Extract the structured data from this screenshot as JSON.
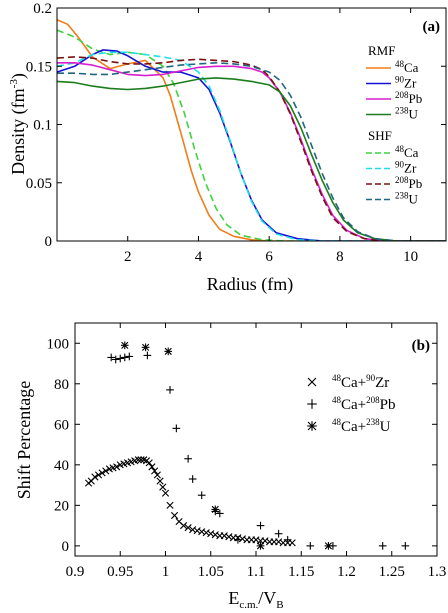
{
  "chart_data": [
    {
      "type": "line",
      "panel_label": "(a)",
      "xlabel": "Radius (fm)",
      "ylabel_main": "Density (fm",
      "ylabel_sup": "-3",
      "ylabel_close": ")",
      "xlim": [
        0,
        11
      ],
      "ylim": [
        0,
        0.2
      ],
      "xticks": [
        2,
        4,
        6,
        8,
        10
      ],
      "yticks": [
        0,
        0.05,
        0.1,
        0.15,
        0.2
      ],
      "ytick_labels": [
        "0",
        "0.05",
        "0.1",
        "0.15",
        "0.2"
      ],
      "legend_groups": [
        {
          "title": "RMF",
          "style": "solid",
          "entries": [
            {
              "mass": "48",
              "element": "Ca",
              "color": "#f07d1a"
            },
            {
              "mass": "90",
              "element": "Zr",
              "color": "#1414d6"
            },
            {
              "mass": "208",
              "element": "Pb",
              "color": "#d81fd0"
            },
            {
              "mass": "238",
              "element": "U",
              "color": "#1b7d1b"
            }
          ]
        },
        {
          "title": "SHF",
          "style": "dashed",
          "entries": [
            {
              "mass": "48",
              "element": "Ca",
              "color": "#3fd43f"
            },
            {
              "mass": "90",
              "element": "Zr",
              "color": "#20e0e6"
            },
            {
              "mass": "208",
              "element": "Pb",
              "color": "#7a1010"
            },
            {
              "mass": "238",
              "element": "U",
              "color": "#1f6680"
            }
          ]
        }
      ],
      "series": [
        {
          "name": "48Ca RMF",
          "color": "#f07d1a",
          "dash": false,
          "x": [
            0,
            0.3,
            0.6,
            1.0,
            1.5,
            2.0,
            2.5,
            3.0,
            3.2,
            3.5,
            3.8,
            4.0,
            4.3,
            4.6,
            5.0,
            5.5,
            6.0,
            11
          ],
          "y": [
            0.19,
            0.186,
            0.175,
            0.158,
            0.148,
            0.152,
            0.155,
            0.14,
            0.125,
            0.093,
            0.06,
            0.042,
            0.022,
            0.01,
            0.004,
            0.001,
            0,
            0
          ]
        },
        {
          "name": "48Ca SHF",
          "color": "#3fd43f",
          "dash": true,
          "x": [
            0,
            0.5,
            1.0,
            1.5,
            2.0,
            2.5,
            3.0,
            3.3,
            3.6,
            3.9,
            4.2,
            4.5,
            4.8,
            5.2,
            5.8,
            6.5,
            11
          ],
          "y": [
            0.181,
            0.175,
            0.165,
            0.16,
            0.162,
            0.16,
            0.15,
            0.135,
            0.11,
            0.078,
            0.05,
            0.028,
            0.014,
            0.005,
            0.001,
            0,
            0
          ]
        },
        {
          "name": "90Zr RMF",
          "color": "#1414d6",
          "dash": false,
          "x": [
            0,
            0.5,
            1.0,
            1.3,
            1.7,
            2.0,
            2.5,
            3.0,
            3.5,
            4.0,
            4.3,
            4.6,
            4.9,
            5.2,
            5.5,
            5.8,
            6.2,
            6.8,
            7.5,
            11
          ],
          "y": [
            0.145,
            0.15,
            0.16,
            0.164,
            0.163,
            0.159,
            0.15,
            0.145,
            0.145,
            0.14,
            0.13,
            0.11,
            0.085,
            0.058,
            0.035,
            0.018,
            0.007,
            0.002,
            0,
            0
          ]
        },
        {
          "name": "90Zr SHF",
          "color": "#20e0e6",
          "dash": true,
          "x": [
            0,
            0.5,
            1.0,
            1.5,
            2.0,
            2.5,
            3.0,
            3.5,
            4.0,
            4.3,
            4.6,
            4.9,
            5.2,
            5.5,
            5.8,
            6.2,
            6.8,
            7.5,
            11
          ],
          "y": [
            0.15,
            0.153,
            0.16,
            0.162,
            0.162,
            0.16,
            0.158,
            0.155,
            0.145,
            0.133,
            0.112,
            0.086,
            0.058,
            0.034,
            0.017,
            0.006,
            0.001,
            0,
            0
          ]
        },
        {
          "name": "208Pb RMF",
          "color": "#d81fd0",
          "dash": false,
          "x": [
            0,
            0.5,
            1.0,
            1.5,
            2.0,
            2.5,
            3.0,
            3.5,
            4.0,
            4.5,
            5.0,
            5.5,
            5.8,
            6.0,
            6.3,
            6.6,
            6.9,
            7.2,
            7.5,
            7.8,
            8.2,
            8.7,
            9.3,
            11
          ],
          "y": [
            0.153,
            0.153,
            0.151,
            0.147,
            0.143,
            0.142,
            0.143,
            0.146,
            0.149,
            0.15,
            0.15,
            0.148,
            0.145,
            0.14,
            0.128,
            0.11,
            0.087,
            0.062,
            0.04,
            0.022,
            0.009,
            0.002,
            0,
            0
          ]
        },
        {
          "name": "208Pb SHF",
          "color": "#7a1010",
          "dash": true,
          "x": [
            0,
            0.5,
            1.0,
            1.5,
            2.0,
            2.5,
            3.0,
            3.5,
            4.0,
            4.5,
            5.0,
            5.5,
            5.8,
            6.0,
            6.3,
            6.6,
            6.9,
            7.2,
            7.5,
            7.8,
            8.2,
            8.7,
            9.3,
            11
          ],
          "y": [
            0.157,
            0.158,
            0.157,
            0.154,
            0.152,
            0.152,
            0.153,
            0.155,
            0.156,
            0.155,
            0.154,
            0.151,
            0.147,
            0.141,
            0.128,
            0.109,
            0.085,
            0.06,
            0.038,
            0.02,
            0.008,
            0.002,
            0,
            0
          ]
        },
        {
          "name": "238U RMF",
          "color": "#1b7d1b",
          "dash": false,
          "x": [
            0,
            0.5,
            1.0,
            1.5,
            2.0,
            2.5,
            3.0,
            3.5,
            4.0,
            4.5,
            5.0,
            5.5,
            6.0,
            6.3,
            6.6,
            6.9,
            7.2,
            7.5,
            7.8,
            8.1,
            8.5,
            9.0,
            9.6,
            11
          ],
          "y": [
            0.137,
            0.136,
            0.133,
            0.131,
            0.13,
            0.131,
            0.133,
            0.136,
            0.139,
            0.14,
            0.139,
            0.137,
            0.134,
            0.128,
            0.116,
            0.097,
            0.074,
            0.052,
            0.033,
            0.018,
            0.007,
            0.002,
            0,
            0
          ]
        },
        {
          "name": "238U SHF",
          "color": "#1f6680",
          "dash": true,
          "x": [
            0,
            0.5,
            1.0,
            1.5,
            2.0,
            2.5,
            3.0,
            3.5,
            4.0,
            4.5,
            5.0,
            5.5,
            6.0,
            6.3,
            6.6,
            6.9,
            7.2,
            7.5,
            7.8,
            8.1,
            8.5,
            9.0,
            9.6,
            11
          ],
          "y": [
            0.144,
            0.144,
            0.143,
            0.143,
            0.145,
            0.147,
            0.149,
            0.151,
            0.152,
            0.153,
            0.152,
            0.15,
            0.145,
            0.138,
            0.125,
            0.106,
            0.082,
            0.058,
            0.037,
            0.02,
            0.008,
            0.002,
            0,
            0
          ]
        }
      ]
    },
    {
      "type": "scatter",
      "panel_label": "(b)",
      "xlabel_main": "E",
      "xlabel_sub": "c.m.",
      "xlabel_tail": "/V",
      "xlabel_sub2": "B",
      "ylabel": "Shift Percentage",
      "xlim": [
        0.9,
        1.3
      ],
      "ylim": [
        -5,
        110
      ],
      "xticks": [
        0.9,
        0.95,
        1.0,
        1.05,
        1.1,
        1.15,
        1.2,
        1.25,
        1.3
      ],
      "xtick_labels": [
        "0.9",
        "0.95",
        "1",
        "1.05",
        "1.1",
        "1.15",
        "1.2",
        "1.25",
        "1.3"
      ],
      "yticks": [
        0,
        20,
        40,
        60,
        80,
        100
      ],
      "legend": [
        {
          "mass1": "48",
          "el1": "Ca",
          "mass2": "90",
          "el2": "Zr",
          "marker": "×"
        },
        {
          "mass1": "48",
          "el1": "Ca",
          "mass2": "208",
          "el2": "Pb",
          "marker": "+"
        },
        {
          "mass1": "48",
          "el1": "Ca",
          "mass2": "238",
          "el2": "U",
          "marker": "✱"
        }
      ],
      "series": [
        {
          "name": "48Ca+90Zr",
          "marker": "x",
          "x": [
            0.915,
            0.918,
            0.922,
            0.926,
            0.93,
            0.934,
            0.938,
            0.942,
            0.946,
            0.95,
            0.954,
            0.958,
            0.962,
            0.966,
            0.97,
            0.973,
            0.976,
            0.979,
            0.982,
            0.985,
            0.988,
            0.991,
            0.994,
            0.997,
            1.0,
            1.005,
            1.01,
            1.015,
            1.02,
            1.025,
            1.03,
            1.035,
            1.04,
            1.045,
            1.05,
            1.055,
            1.06,
            1.065,
            1.07,
            1.075,
            1.08,
            1.085,
            1.09,
            1.095,
            1.1,
            1.105,
            1.11,
            1.115,
            1.12,
            1.125,
            1.13,
            1.135,
            1.14
          ],
          "y": [
            31,
            32,
            34,
            35,
            36,
            37,
            38,
            38.5,
            39,
            40,
            40.5,
            41,
            41.5,
            42,
            42.5,
            42.5,
            42.5,
            42,
            41,
            39,
            37,
            35,
            32,
            29,
            26,
            20,
            15,
            12,
            10,
            9,
            8,
            7.5,
            7,
            6.5,
            6,
            5.5,
            5,
            5,
            4.5,
            4,
            4,
            3.5,
            3,
            3,
            3,
            2.5,
            2.5,
            2,
            2,
            2,
            1.5,
            1.5,
            1.5
          ]
        },
        {
          "name": "48Ca+208Pb",
          "marker": "+",
          "x": [
            0.94,
            0.945,
            0.95,
            0.955,
            0.96,
            0.98,
            1.005,
            1.012,
            1.025,
            1.03,
            1.04,
            1.055,
            1.06,
            1.08,
            1.105,
            1.125,
            1.135,
            1.16,
            1.185,
            1.24,
            1.265
          ],
          "y": [
            93,
            92,
            92.5,
            93,
            93.5,
            94,
            77,
            58,
            43,
            33,
            25,
            17,
            16,
            3,
            10,
            6,
            3,
            0,
            0,
            0,
            0
          ]
        },
        {
          "name": "48Ca+238U",
          "marker": "star",
          "x": [
            0.955,
            0.978,
            1.003,
            1.055,
            1.105,
            1.18
          ],
          "y": [
            99,
            98,
            96,
            18,
            0,
            0
          ]
        }
      ]
    }
  ]
}
